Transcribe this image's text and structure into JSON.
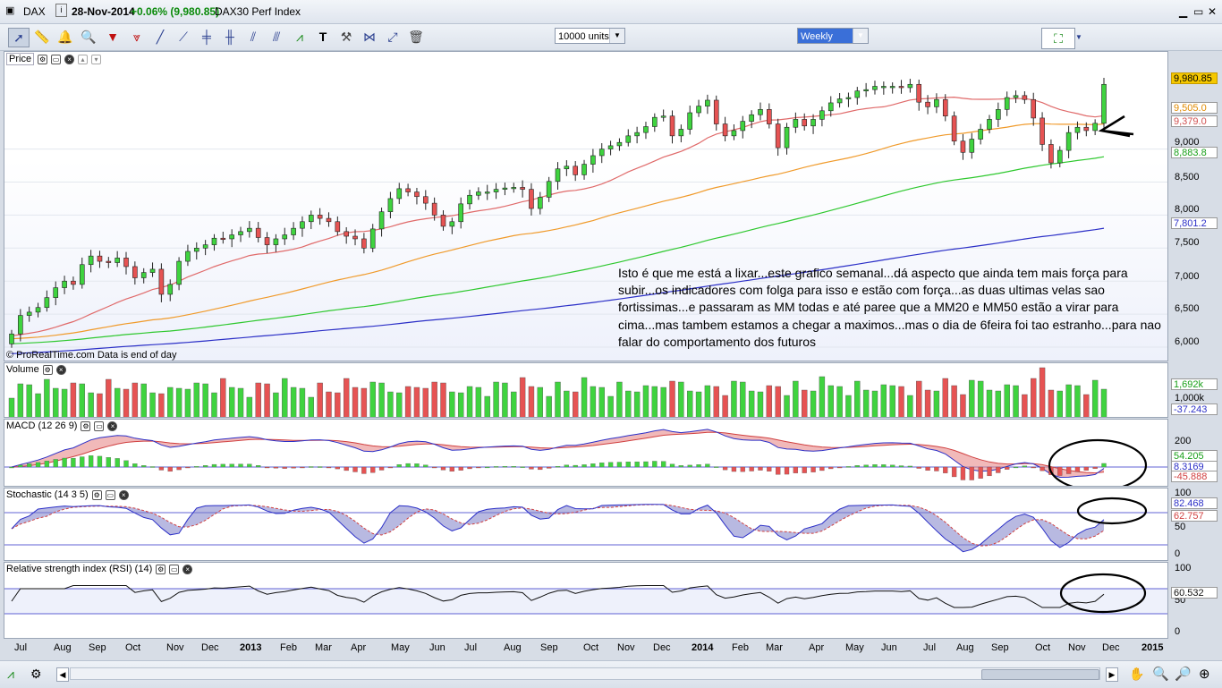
{
  "window": {
    "symbol": "DAX",
    "date": "28-Nov-2014",
    "change": "+0.06% (9,980.85)",
    "name": "DAX30 Perf Index"
  },
  "toolbar": {
    "units": "10000 units",
    "period": "Weekly",
    "icons": [
      "cursor-icon",
      "ruler-icon",
      "alarm-bell-icon",
      "zoom-icon",
      "fibonacci-icon",
      "trendline-icon",
      "line-icon",
      "horizontal-line-icon",
      "vertical-line-icon",
      "channel-icon",
      "gann-icon",
      "t-text-icon",
      "tools-icon",
      "trash-icon"
    ]
  },
  "colors": {
    "up": "#3fd33f",
    "down": "#e65353",
    "mm20": "#e06a6a",
    "mm50": "#f09a2a",
    "mm100": "#2ec82e",
    "mm200": "#2b2fc7",
    "price_box": "#f5c800"
  },
  "panels": {
    "price": {
      "title": "Price",
      "copyright": "© ProRealTime.com  Data is end of day",
      "scale": [
        "9,000",
        "8,500",
        "8,000",
        "7,500",
        "7,000",
        "6,500",
        "6,000"
      ],
      "last_price": "9,980.85",
      "mm20_label": "9,505.0",
      "mm50_label": "9,379.0",
      "mm100_label": "8,883.8",
      "mm200_label": "7,801.2"
    },
    "volume": {
      "title": "Volume",
      "scale": [
        "1,000k"
      ],
      "box1": "1,692k",
      "box2": "-37.243"
    },
    "macd": {
      "title": "MACD (12 26 9)",
      "scale": [
        "200",
        "0"
      ],
      "box1": "54.205",
      "box2": "8.3169",
      "box3": "-45.888"
    },
    "stochastic": {
      "title": "Stochastic (14 3 5)",
      "scale": [
        "100",
        "50",
        "0"
      ],
      "box1": "82.468",
      "box2": "62.757"
    },
    "rsi": {
      "title": "Relative strength index (RSI) (14)",
      "scale": [
        "100",
        "50",
        "0"
      ],
      "box1": "60.532"
    }
  },
  "annotation": "Isto é que me está a lixar...este grafico semanal...dá aspecto que ainda tem mais força para subir...os indicadores com folga para isso e estão com força...as duas ultimas velas sao fortissimas...e passaram as MM todas e até paree que a MM20 e MM50 estão a virar para cima...mas tambem estamos a chegar a maximos...mas o dia de 6feira foi tao estranho...para nao falar do comportamento dos futuros",
  "x_axis": [
    "Jul",
    "Aug",
    "Sep",
    "Oct",
    "Nov",
    "Dec",
    "2013",
    "Feb",
    "Mar",
    "Apr",
    "May",
    "Jun",
    "Jul",
    "Aug",
    "Sep",
    "Oct",
    "Nov",
    "Dec",
    "2014",
    "Feb",
    "Mar",
    "Apr",
    "May",
    "Jun",
    "Jul",
    "Aug",
    "Sep",
    "Oct",
    "Nov",
    "Dec",
    "2015"
  ],
  "chart_data": {
    "type": "candlestick",
    "period": "Weekly",
    "close": [
      6200,
      6480,
      6530,
      6600,
      6750,
      6900,
      7000,
      6950,
      7250,
      7380,
      7300,
      7280,
      7350,
      7220,
      7050,
      7130,
      7180,
      6800,
      6950,
      7300,
      7450,
      7500,
      7550,
      7650,
      7640,
      7700,
      7750,
      7800,
      7660,
      7550,
      7640,
      7700,
      7800,
      7900,
      8000,
      7950,
      7900,
      7750,
      7680,
      7640,
      7500,
      7790,
      8050,
      8250,
      8400,
      8350,
      8280,
      8180,
      8000,
      7830,
      7900,
      8170,
      8300,
      8350,
      8350,
      8390,
      8410,
      8420,
      8390,
      8100,
      8270,
      8510,
      8700,
      8740,
      8610,
      8770,
      8900,
      9000,
      9050,
      9100,
      9200,
      9250,
      9340,
      9480,
      9500,
      9200,
      9300,
      9550,
      9650,
      9740,
      9380,
      9200,
      9280,
      9420,
      9520,
      9600,
      9380,
      9020,
      9330,
      9450,
      9350,
      9450,
      9580,
      9700,
      9760,
      9780,
      9880,
      9900,
      9950,
      9950,
      9950,
      9930,
      9980,
      9710,
      9640,
      9750,
      9500,
      9120,
      8950,
      9150,
      9300,
      9450,
      9600,
      9780,
      9810,
      9750,
      9470,
      9070,
      8790,
      8980,
      9250,
      9330,
      9280,
      9390,
      9980
    ],
    "mm_labels": {
      "MM20": 9505,
      "MM50": 9379,
      "MM100": 8883.8,
      "MM200": 7801.2
    },
    "indicators": {
      "MACD": "MACD (12 26 9)",
      "Stochastic": "Stochastic (14 3 5)",
      "RSI": "Relative strength index (RSI) (14)"
    },
    "price_ticks": [
      6000,
      6500,
      7000,
      7500,
      8000,
      8500,
      9000
    ],
    "ylim": [
      5850,
      10150
    ]
  }
}
